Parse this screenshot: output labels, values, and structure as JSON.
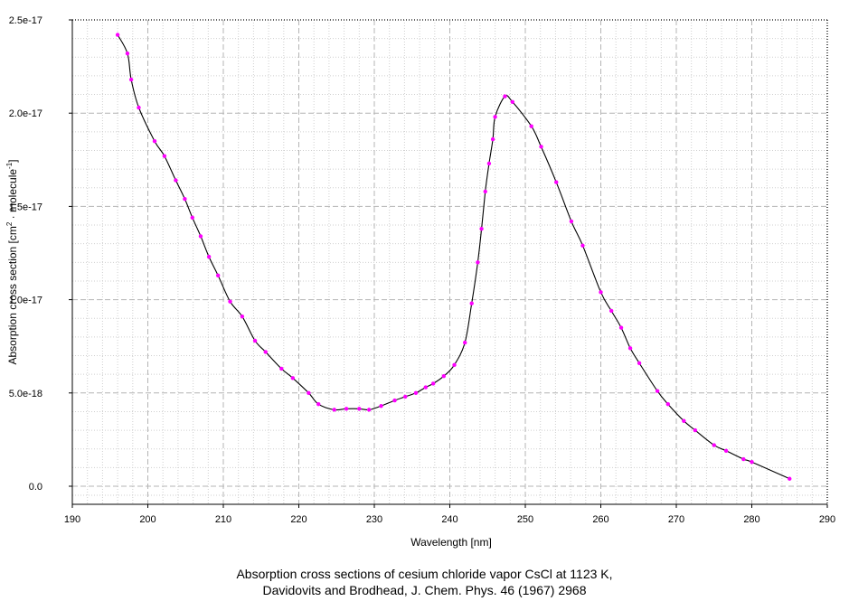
{
  "chart_data": {
    "type": "line",
    "title": "",
    "xlabel": "Wavelength [nm]",
    "ylabel_parts": [
      "Absorption cross section [cm",
      "2",
      " · molecule",
      "-1",
      "]"
    ],
    "xlim": [
      190,
      290
    ],
    "ylim": [
      0,
      2.5e-17
    ],
    "x_ticks": [
      190,
      200,
      210,
      220,
      230,
      240,
      250,
      260,
      270,
      280,
      290
    ],
    "x_tick_labels": [
      "190",
      "200",
      "210",
      "220",
      "230",
      "240",
      "250",
      "260",
      "270",
      "280",
      "290"
    ],
    "y_ticks": [
      0,
      5e-18,
      1e-17,
      1.5e-17,
      2e-17,
      2.5e-17
    ],
    "y_tick_labels": [
      "0.0",
      "5.0e-18",
      "1.0e-17",
      "1.5e-17",
      "2.0e-17",
      "2.5e-17"
    ],
    "grid": true,
    "colors": {
      "line": "#000000",
      "marker": "#ff00ff",
      "major_grid": "#b4b4b4",
      "minor_grid": "#cfcfcf"
    },
    "series": [
      {
        "x": [
          196.0,
          197.3,
          197.8,
          198.8,
          200.9,
          202.2,
          203.7,
          204.9,
          205.9,
          207.0,
          208.1,
          209.3,
          210.9,
          212.5,
          214.2,
          215.6,
          217.7,
          219.2,
          221.3,
          222.6,
          224.7,
          226.3,
          228.0,
          229.3,
          230.9,
          232.7,
          234.1,
          235.5,
          236.8,
          237.8,
          239.2,
          240.6,
          242.0,
          242.9,
          243.7,
          244.2,
          244.7,
          245.2,
          245.7,
          246.0,
          247.3,
          248.3,
          250.8,
          252.1,
          254.1,
          256.1,
          257.6,
          260.0,
          261.4,
          262.7,
          263.9,
          265.1,
          267.5,
          268.9,
          271.0,
          272.5,
          275.0,
          276.6,
          278.9,
          280.0,
          285.0
        ],
        "y": [
          2.42e-17,
          2.32e-17,
          2.18e-17,
          2.03e-17,
          1.85e-17,
          1.77e-17,
          1.64e-17,
          1.54e-17,
          1.44e-17,
          1.34e-17,
          1.23e-17,
          1.13e-17,
          9.9e-18,
          9.1e-18,
          7.8e-18,
          7.2e-18,
          6.3e-18,
          5.8e-18,
          5e-18,
          4.4e-18,
          4.1e-18,
          4.15e-18,
          4.15e-18,
          4.1e-18,
          4.3e-18,
          4.6e-18,
          4.8e-18,
          5e-18,
          5.3e-18,
          5.5e-18,
          5.9e-18,
          6.5e-18,
          7.7e-18,
          9.8e-18,
          1.2e-17,
          1.38e-17,
          1.58e-17,
          1.73e-17,
          1.86e-17,
          1.98e-17,
          2.09e-17,
          2.06e-17,
          1.93e-17,
          1.82e-17,
          1.63e-17,
          1.42e-17,
          1.29e-17,
          1.04e-17,
          9.4e-18,
          8.5e-18,
          7.4e-18,
          6.6e-18,
          5.1e-18,
          4.4e-18,
          3.5e-18,
          3e-18,
          2.2e-18,
          1.9e-18,
          1.45e-18,
          1.3e-18,
          4e-19
        ]
      }
    ]
  },
  "caption": {
    "line1": "Absorption cross sections of cesium chloride vapor CsCl at 1123 K,",
    "line2": "Davidovits and Brodhead, J. Chem. Phys. 46 (1967) 2968"
  }
}
